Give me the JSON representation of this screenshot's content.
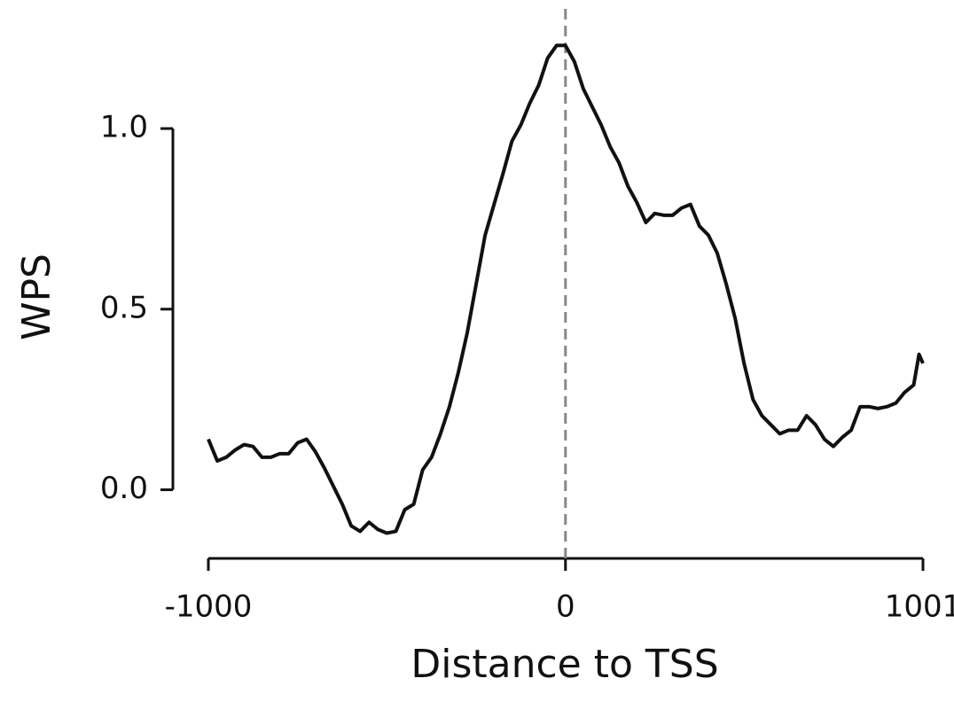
{
  "chart_data": {
    "type": "line",
    "x_label": "Distance to TSS",
    "y_label": "WPS",
    "xlim": [
      -1000,
      1001
    ],
    "ylim": [
      -0.19,
      1.27
    ],
    "xticks": [
      -1000,
      0,
      1001
    ],
    "yticks": [
      {
        "value": 0,
        "label": "0.0"
      },
      0.5,
      {
        "value": 1,
        "label": "1.0"
      }
    ],
    "vline": 0,
    "vline_color": "#888888",
    "x": [
      -1000,
      -975,
      -950,
      -925,
      -900,
      -875,
      -850,
      -825,
      -800,
      -775,
      -750,
      -725,
      -700,
      -675,
      -650,
      -625,
      -600,
      -575,
      -550,
      -525,
      -500,
      -475,
      -450,
      -425,
      -400,
      -375,
      -350,
      -325,
      -300,
      -275,
      -250,
      -225,
      -200,
      -175,
      -150,
      -125,
      -100,
      -75,
      -50,
      -25,
      0,
      25,
      50,
      75,
      100,
      125,
      150,
      175,
      200,
      225,
      250,
      275,
      300,
      325,
      350,
      375,
      400,
      425,
      450,
      475,
      500,
      525,
      550,
      575,
      600,
      625,
      650,
      675,
      700,
      725,
      750,
      775,
      800,
      825,
      850,
      875,
      900,
      925,
      950,
      975,
      990,
      1001
    ],
    "series": [
      {
        "color": "#111111",
        "values": [
          0.14,
          0.08,
          0.09,
          0.11,
          0.125,
          0.12,
          0.09,
          0.09,
          0.1,
          0.1,
          0.13,
          0.14,
          0.105,
          0.06,
          0.01,
          -0.04,
          -0.1,
          -0.115,
          -0.09,
          -0.11,
          -0.12,
          -0.115,
          -0.055,
          -0.04,
          0.055,
          0.09,
          0.155,
          0.23,
          0.325,
          0.435,
          0.57,
          0.705,
          0.79,
          0.875,
          0.965,
          1.01,
          1.07,
          1.12,
          1.195,
          1.23,
          1.23,
          1.185,
          1.11,
          1.06,
          1.01,
          0.95,
          0.905,
          0.84,
          0.795,
          0.74,
          0.765,
          0.76,
          0.76,
          0.78,
          0.79,
          0.73,
          0.705,
          0.655,
          0.57,
          0.475,
          0.35,
          0.25,
          0.205,
          0.18,
          0.155,
          0.165,
          0.165,
          0.205,
          0.18,
          0.14,
          0.12,
          0.145,
          0.165,
          0.23,
          0.23,
          0.225,
          0.23,
          0.24,
          0.27,
          0.29,
          0.375,
          0.35
        ]
      }
    ]
  }
}
